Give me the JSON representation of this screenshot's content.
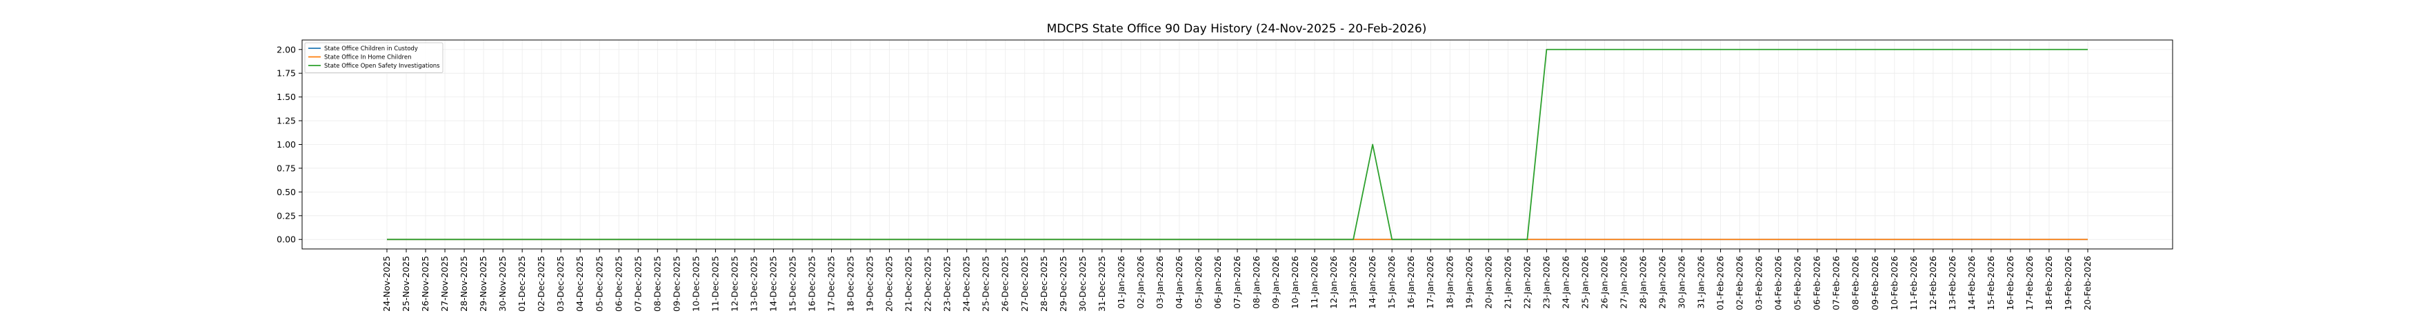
{
  "chart_data": {
    "type": "line",
    "title": "MDCPS State Office 90 Day History (24-Nov-2025 - 20-Feb-2026)",
    "xlabel": "",
    "ylabel": "",
    "ylim": [
      -0.1,
      2.1
    ],
    "yticks": [
      "0.00",
      "0.25",
      "0.50",
      "0.75",
      "1.00",
      "1.25",
      "1.50",
      "1.75",
      "2.00"
    ],
    "grid": true,
    "legend_position": "top-left",
    "x": [
      "24-Nov-2025",
      "25-Nov-2025",
      "26-Nov-2025",
      "27-Nov-2025",
      "28-Nov-2025",
      "29-Nov-2025",
      "30-Nov-2025",
      "01-Dec-2025",
      "02-Dec-2025",
      "03-Dec-2025",
      "04-Dec-2025",
      "05-Dec-2025",
      "06-Dec-2025",
      "07-Dec-2025",
      "08-Dec-2025",
      "09-Dec-2025",
      "10-Dec-2025",
      "11-Dec-2025",
      "12-Dec-2025",
      "13-Dec-2025",
      "14-Dec-2025",
      "15-Dec-2025",
      "16-Dec-2025",
      "17-Dec-2025",
      "18-Dec-2025",
      "19-Dec-2025",
      "20-Dec-2025",
      "21-Dec-2025",
      "22-Dec-2025",
      "23-Dec-2025",
      "24-Dec-2025",
      "25-Dec-2025",
      "26-Dec-2025",
      "27-Dec-2025",
      "28-Dec-2025",
      "29-Dec-2025",
      "30-Dec-2025",
      "31-Dec-2025",
      "01-Jan-2026",
      "02-Jan-2026",
      "03-Jan-2026",
      "04-Jan-2026",
      "05-Jan-2026",
      "06-Jan-2026",
      "07-Jan-2026",
      "08-Jan-2026",
      "09-Jan-2026",
      "10-Jan-2026",
      "11-Jan-2026",
      "12-Jan-2026",
      "13-Jan-2026",
      "14-Jan-2026",
      "15-Jan-2026",
      "16-Jan-2026",
      "17-Jan-2026",
      "18-Jan-2026",
      "19-Jan-2026",
      "20-Jan-2026",
      "21-Jan-2026",
      "22-Jan-2026",
      "23-Jan-2026",
      "24-Jan-2026",
      "25-Jan-2026",
      "26-Jan-2026",
      "27-Jan-2026",
      "28-Jan-2026",
      "29-Jan-2026",
      "30-Jan-2026",
      "31-Jan-2026",
      "01-Feb-2026",
      "02-Feb-2026",
      "03-Feb-2026",
      "04-Feb-2026",
      "05-Feb-2026",
      "06-Feb-2026",
      "07-Feb-2026",
      "08-Feb-2026",
      "09-Feb-2026",
      "10-Feb-2026",
      "11-Feb-2026",
      "12-Feb-2026",
      "13-Feb-2026",
      "14-Feb-2026",
      "15-Feb-2026",
      "16-Feb-2026",
      "17-Feb-2026",
      "18-Feb-2026",
      "19-Feb-2026",
      "20-Feb-2026"
    ],
    "series": [
      {
        "name": "State Office Children in Custody",
        "color": "#1f77b4",
        "values": [
          0,
          0,
          0,
          0,
          0,
          0,
          0,
          0,
          0,
          0,
          0,
          0,
          0,
          0,
          0,
          0,
          0,
          0,
          0,
          0,
          0,
          0,
          0,
          0,
          0,
          0,
          0,
          0,
          0,
          0,
          0,
          0,
          0,
          0,
          0,
          0,
          0,
          0,
          0,
          0,
          0,
          0,
          0,
          0,
          0,
          0,
          0,
          0,
          0,
          0,
          0,
          0,
          0,
          0,
          0,
          0,
          0,
          0,
          0,
          0,
          0,
          0,
          0,
          0,
          0,
          0,
          0,
          0,
          0,
          0,
          0,
          0,
          0,
          0,
          0,
          0,
          0,
          0,
          0,
          0,
          0,
          0,
          0,
          0,
          0,
          0,
          0,
          0,
          0
        ]
      },
      {
        "name": "State Office In Home Children",
        "color": "#ff7f0e",
        "values": [
          0,
          0,
          0,
          0,
          0,
          0,
          0,
          0,
          0,
          0,
          0,
          0,
          0,
          0,
          0,
          0,
          0,
          0,
          0,
          0,
          0,
          0,
          0,
          0,
          0,
          0,
          0,
          0,
          0,
          0,
          0,
          0,
          0,
          0,
          0,
          0,
          0,
          0,
          0,
          0,
          0,
          0,
          0,
          0,
          0,
          0,
          0,
          0,
          0,
          0,
          0,
          0,
          0,
          0,
          0,
          0,
          0,
          0,
          0,
          0,
          0,
          0,
          0,
          0,
          0,
          0,
          0,
          0,
          0,
          0,
          0,
          0,
          0,
          0,
          0,
          0,
          0,
          0,
          0,
          0,
          0,
          0,
          0,
          0,
          0,
          0,
          0,
          0,
          0
        ]
      },
      {
        "name": "State Office Open Safety Investigations",
        "color": "#2ca02c",
        "values": [
          0,
          0,
          0,
          0,
          0,
          0,
          0,
          0,
          0,
          0,
          0,
          0,
          0,
          0,
          0,
          0,
          0,
          0,
          0,
          0,
          0,
          0,
          0,
          0,
          0,
          0,
          0,
          0,
          0,
          0,
          0,
          0,
          0,
          0,
          0,
          0,
          0,
          0,
          0,
          0,
          0,
          0,
          0,
          0,
          0,
          0,
          0,
          0,
          0,
          0,
          0,
          1,
          0,
          0,
          0,
          0,
          0,
          0,
          0,
          0,
          2,
          2,
          2,
          2,
          2,
          2,
          2,
          2,
          2,
          2,
          2,
          2,
          2,
          2,
          2,
          2,
          2,
          2,
          2,
          2,
          2,
          2,
          2,
          2,
          2,
          2,
          2,
          2,
          2
        ]
      }
    ]
  }
}
